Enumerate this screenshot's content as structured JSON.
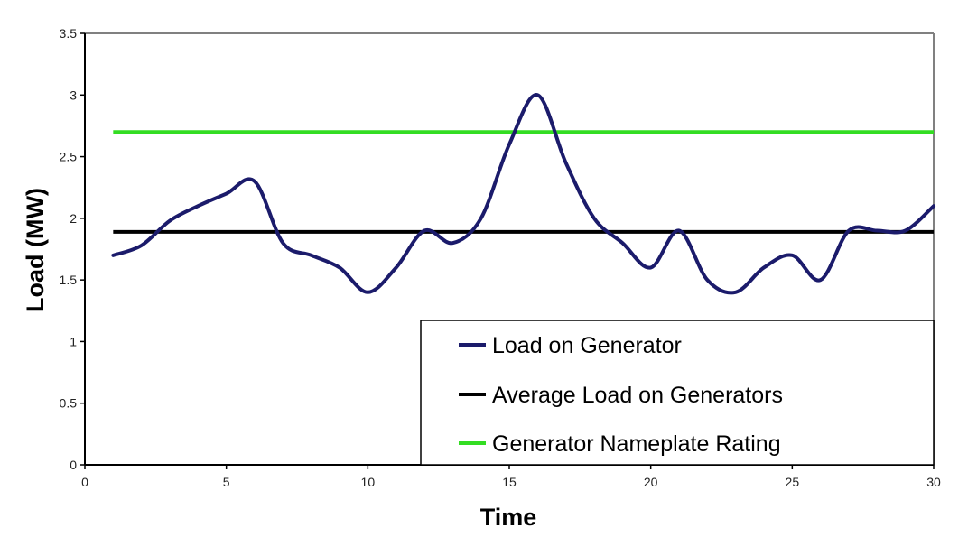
{
  "chart_data": {
    "type": "line",
    "title": "",
    "xlabel": "Time",
    "ylabel": "Load (MW)",
    "xlim": [
      0,
      30
    ],
    "ylim": [
      0,
      3.5
    ],
    "xticks": [
      0,
      5,
      10,
      15,
      20,
      25,
      30
    ],
    "yticks": [
      0,
      0.5,
      1,
      1.5,
      2,
      2.5,
      3,
      3.5
    ],
    "grid": false,
    "legend_position": "lower right",
    "x": [
      1,
      2,
      3,
      4,
      5,
      6,
      7,
      8,
      9,
      10,
      11,
      12,
      13,
      14,
      15,
      16,
      17,
      18,
      19,
      20,
      21,
      22,
      23,
      24,
      25,
      26,
      27,
      28,
      29,
      30
    ],
    "series": [
      {
        "name": "Load on Generator",
        "color": "#1b1b6b",
        "values": [
          1.7,
          1.78,
          1.98,
          2.1,
          2.2,
          2.3,
          1.8,
          1.7,
          1.6,
          1.4,
          1.6,
          1.9,
          1.8,
          2.0,
          2.6,
          3.0,
          2.45,
          2.0,
          1.8,
          1.6,
          1.9,
          1.5,
          1.4,
          1.6,
          1.7,
          1.5,
          1.9,
          1.9,
          1.9,
          2.1
        ]
      },
      {
        "name": "Average Load on Generators",
        "color": "#000000",
        "values": [
          1.89,
          1.89,
          1.89,
          1.89,
          1.89,
          1.89,
          1.89,
          1.89,
          1.89,
          1.89,
          1.89,
          1.89,
          1.89,
          1.89,
          1.89,
          1.89,
          1.89,
          1.89,
          1.89,
          1.89,
          1.89,
          1.89,
          1.89,
          1.89,
          1.89,
          1.89,
          1.89,
          1.89,
          1.89,
          1.89
        ]
      },
      {
        "name": "Generator Nameplate Rating",
        "color": "#33dd22",
        "values": [
          2.7,
          2.7,
          2.7,
          2.7,
          2.7,
          2.7,
          2.7,
          2.7,
          2.7,
          2.7,
          2.7,
          2.7,
          2.7,
          2.7,
          2.7,
          2.7,
          2.7,
          2.7,
          2.7,
          2.7,
          2.7,
          2.7,
          2.7,
          2.7,
          2.7,
          2.7,
          2.7,
          2.7,
          2.7,
          2.7
        ]
      }
    ]
  }
}
